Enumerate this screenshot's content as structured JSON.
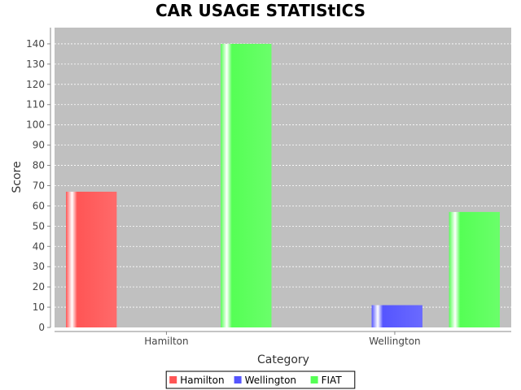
{
  "chart_data": {
    "type": "bar",
    "title": "CAR USAGE STATIStICS",
    "xlabel": "Category",
    "ylabel": "Score",
    "categories": [
      "Hamilton",
      "Wellington"
    ],
    "series": [
      {
        "name": "Hamilton",
        "color": "#ff5555",
        "values": [
          67,
          0
        ]
      },
      {
        "name": "Wellington",
        "color": "#5555ff",
        "values": [
          0,
          11
        ]
      },
      {
        "name": "FIAT",
        "color": "#55ff55",
        "values": [
          140,
          57
        ]
      }
    ],
    "ylim": [
      0,
      148
    ],
    "yticks": [
      0,
      10,
      20,
      30,
      40,
      50,
      60,
      70,
      80,
      90,
      100,
      110,
      120,
      130,
      140
    ],
    "grid": true,
    "legend": "bottom"
  }
}
